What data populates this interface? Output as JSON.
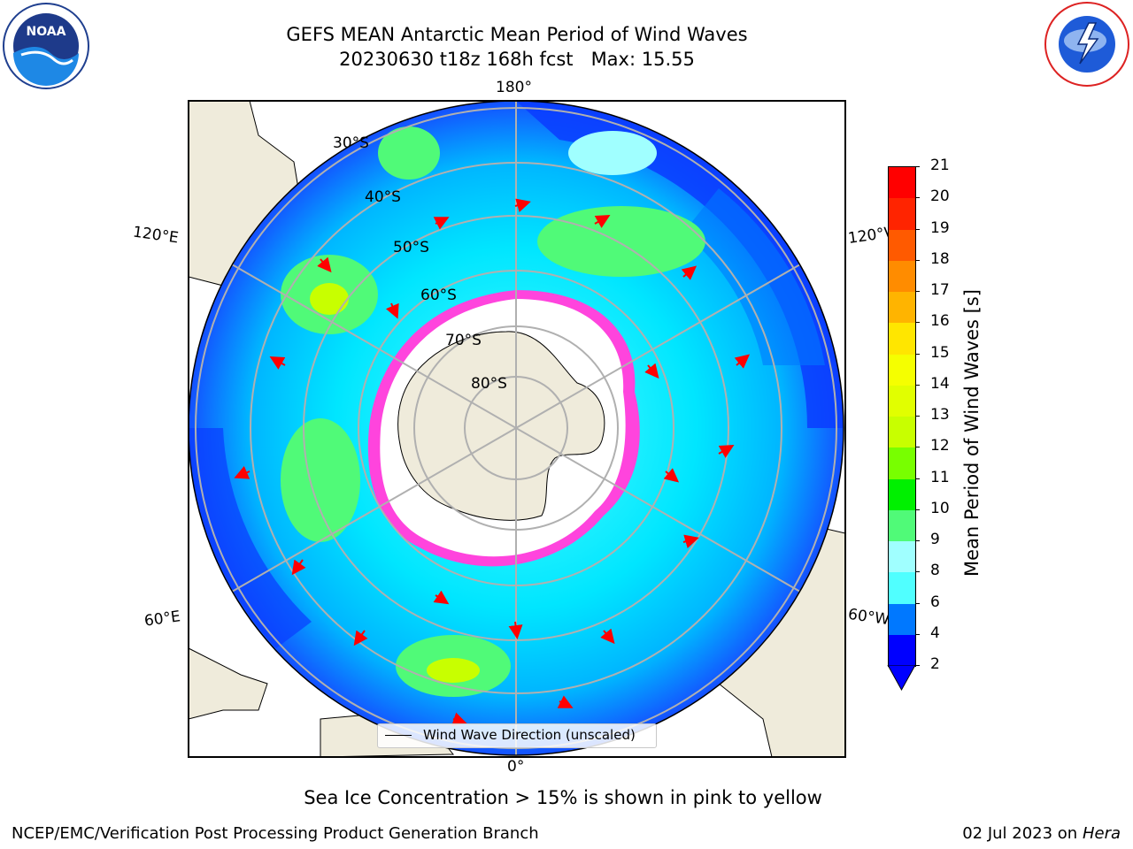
{
  "title": {
    "line1": "GEFS MEAN Antarctic Mean Period of Wind Waves",
    "line2": "20230630 t18z 168h fcst   Max: 15.55"
  },
  "map": {
    "lon_labels": {
      "top": "180°",
      "bottom": "0°",
      "left_upper": "120°E",
      "left_lower": "60°E",
      "right_upper": "120°W",
      "right_lower": "60°W"
    },
    "lat_labels": [
      "30°S",
      "40°S",
      "50°S",
      "60°S",
      "70°S",
      "80°S"
    ],
    "legend_label": "Wind Wave Direction (unscaled)",
    "colors": {
      "land": "#efebdb",
      "ocean_low": "#0000ff",
      "ice": "#ff44dd",
      "arrow": "#ff0000"
    }
  },
  "colorbar": {
    "label": "Mean Period of Wind Waves [s]",
    "ticks": [
      "21",
      "20",
      "19",
      "18",
      "17",
      "16",
      "15",
      "14",
      "13",
      "12",
      "11",
      "10",
      "9",
      "8",
      "6",
      "4",
      "2"
    ],
    "colors": [
      "#ff0000",
      "#ff2400",
      "#ff5a00",
      "#ff8c00",
      "#ffb400",
      "#ffe600",
      "#f5ff00",
      "#e1ff00",
      "#c8ff00",
      "#78ff00",
      "#00f000",
      "#50fa78",
      "#a0ffff",
      "#50ffff",
      "#00e6ff",
      "#0078ff",
      "#0000ff"
    ]
  },
  "footer": {
    "ice_note": "Sea Ice Concentration > 15% is shown in pink to yellow",
    "credit": "NCEP/EMC/Verification Post Processing Product Generation Branch",
    "date": "02 Jul 2023 on ",
    "machine": "Hera"
  }
}
